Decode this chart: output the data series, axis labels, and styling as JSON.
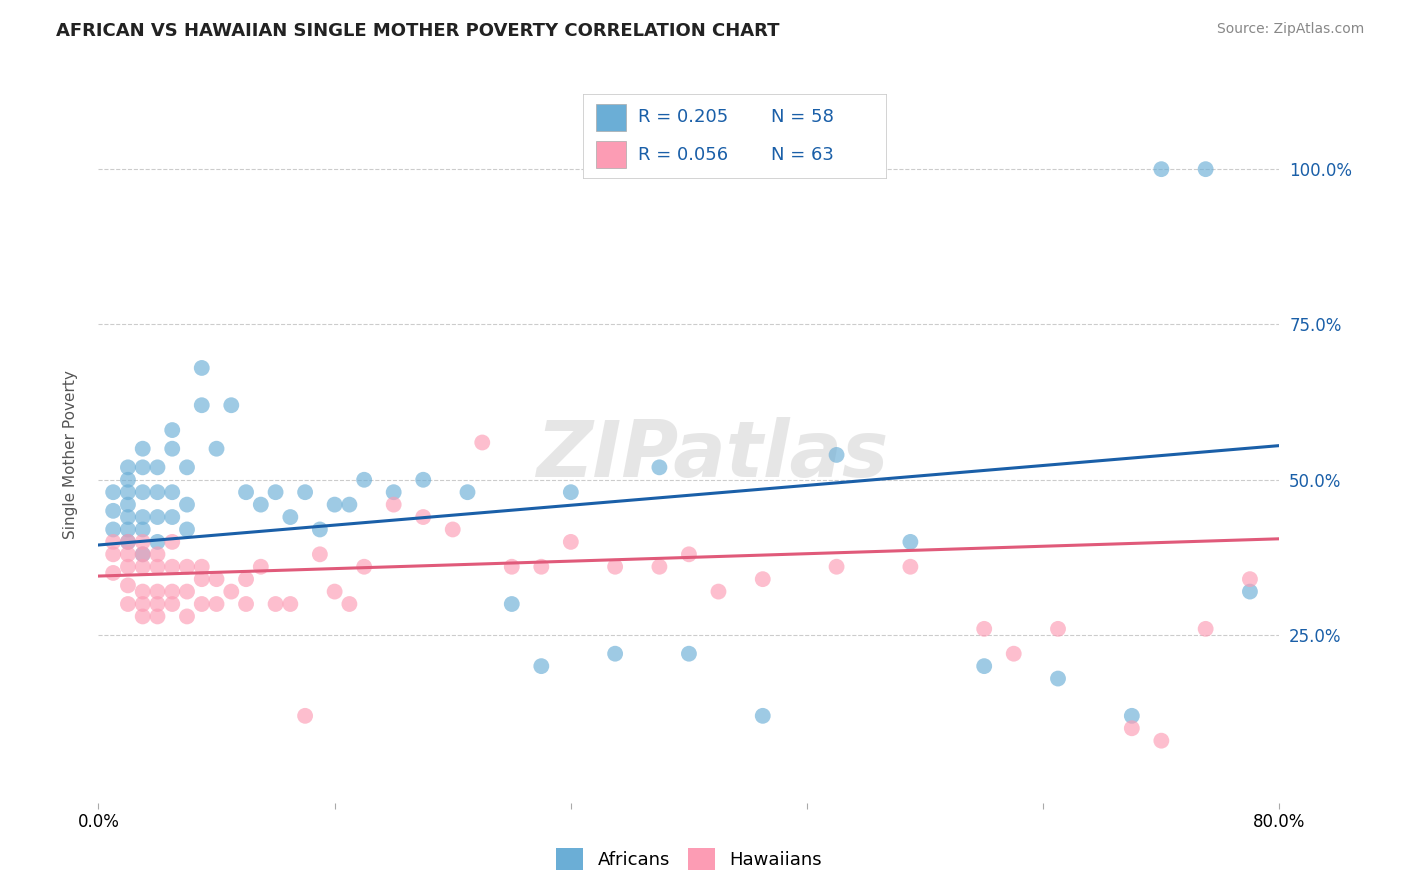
{
  "title": "AFRICAN VS HAWAIIAN SINGLE MOTHER POVERTY CORRELATION CHART",
  "source": "Source: ZipAtlas.com",
  "ylabel": "Single Mother Poverty",
  "xlim": [
    0.0,
    0.8
  ],
  "ylim": [
    -0.02,
    1.1
  ],
  "african_R": 0.205,
  "african_N": 58,
  "hawaiian_R": 0.056,
  "hawaiian_N": 63,
  "african_color": "#6baed6",
  "hawaiian_color": "#fc9cb4",
  "african_line_color": "#1a5fa8",
  "hawaiian_line_color": "#e05a7a",
  "legend_text_color": "#1a5fa8",
  "watermark": "ZIPatlas",
  "african_x": [
    0.01,
    0.01,
    0.01,
    0.02,
    0.02,
    0.02,
    0.02,
    0.02,
    0.02,
    0.02,
    0.03,
    0.03,
    0.03,
    0.03,
    0.03,
    0.03,
    0.04,
    0.04,
    0.04,
    0.04,
    0.05,
    0.05,
    0.05,
    0.05,
    0.06,
    0.06,
    0.06,
    0.07,
    0.07,
    0.08,
    0.09,
    0.1,
    0.11,
    0.12,
    0.13,
    0.14,
    0.15,
    0.16,
    0.17,
    0.18,
    0.2,
    0.22,
    0.25,
    0.28,
    0.3,
    0.32,
    0.35,
    0.38,
    0.4,
    0.45,
    0.5,
    0.55,
    0.6,
    0.65,
    0.7,
    0.72,
    0.75,
    0.78
  ],
  "african_y": [
    0.42,
    0.45,
    0.48,
    0.4,
    0.42,
    0.44,
    0.46,
    0.48,
    0.5,
    0.52,
    0.38,
    0.42,
    0.44,
    0.48,
    0.52,
    0.55,
    0.4,
    0.44,
    0.48,
    0.52,
    0.44,
    0.48,
    0.55,
    0.58,
    0.42,
    0.46,
    0.52,
    0.62,
    0.68,
    0.55,
    0.62,
    0.48,
    0.46,
    0.48,
    0.44,
    0.48,
    0.42,
    0.46,
    0.46,
    0.5,
    0.48,
    0.5,
    0.48,
    0.3,
    0.2,
    0.48,
    0.22,
    0.52,
    0.22,
    0.12,
    0.54,
    0.4,
    0.2,
    0.18,
    0.12,
    1.0,
    1.0,
    0.32
  ],
  "hawaiian_x": [
    0.01,
    0.01,
    0.01,
    0.02,
    0.02,
    0.02,
    0.02,
    0.02,
    0.03,
    0.03,
    0.03,
    0.03,
    0.03,
    0.03,
    0.04,
    0.04,
    0.04,
    0.04,
    0.04,
    0.05,
    0.05,
    0.05,
    0.05,
    0.06,
    0.06,
    0.06,
    0.07,
    0.07,
    0.07,
    0.08,
    0.08,
    0.09,
    0.1,
    0.1,
    0.11,
    0.12,
    0.13,
    0.14,
    0.15,
    0.16,
    0.17,
    0.18,
    0.2,
    0.22,
    0.24,
    0.26,
    0.28,
    0.3,
    0.32,
    0.35,
    0.38,
    0.4,
    0.42,
    0.45,
    0.5,
    0.55,
    0.6,
    0.62,
    0.65,
    0.7,
    0.72,
    0.75,
    0.78
  ],
  "hawaiian_y": [
    0.35,
    0.38,
    0.4,
    0.3,
    0.33,
    0.36,
    0.38,
    0.4,
    0.28,
    0.3,
    0.32,
    0.36,
    0.38,
    0.4,
    0.28,
    0.3,
    0.32,
    0.36,
    0.38,
    0.3,
    0.32,
    0.36,
    0.4,
    0.28,
    0.32,
    0.36,
    0.3,
    0.34,
    0.36,
    0.3,
    0.34,
    0.32,
    0.3,
    0.34,
    0.36,
    0.3,
    0.3,
    0.12,
    0.38,
    0.32,
    0.3,
    0.36,
    0.46,
    0.44,
    0.42,
    0.56,
    0.36,
    0.36,
    0.4,
    0.36,
    0.36,
    0.38,
    0.32,
    0.34,
    0.36,
    0.36,
    0.26,
    0.22,
    0.26,
    0.1,
    0.08,
    0.26,
    0.34
  ]
}
